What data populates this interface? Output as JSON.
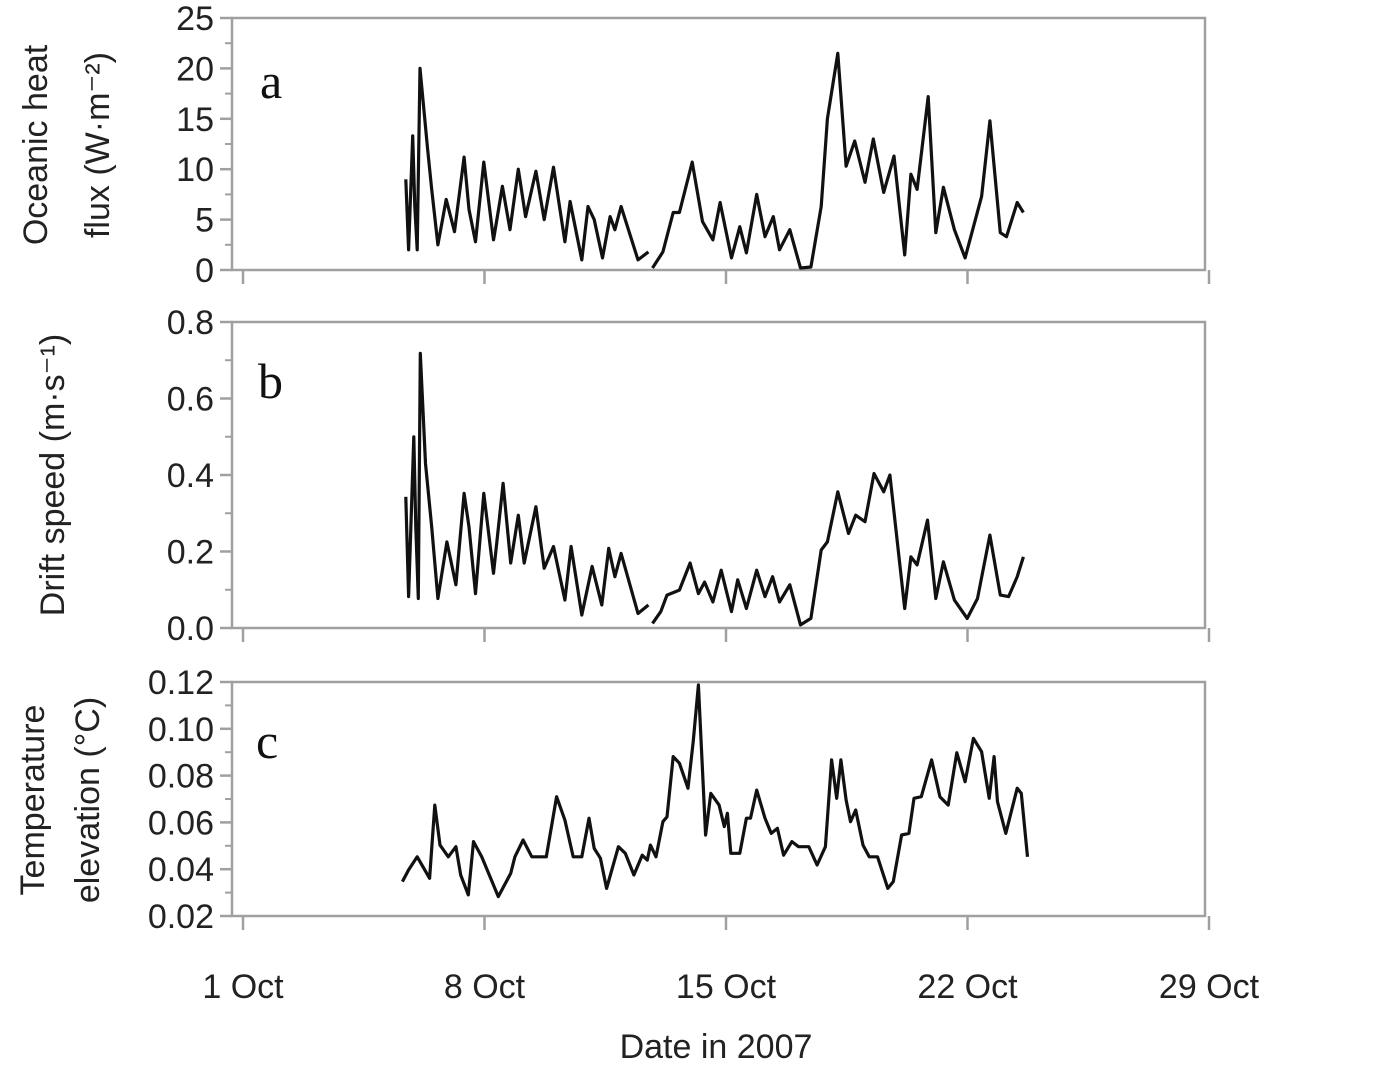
{
  "chart_data": {
    "type": "line",
    "xlabel": "Date in 2007",
    "x_unit": "days after 1 Oct 2007",
    "xlim": [
      0,
      28
    ],
    "x_ticks": [
      0,
      7,
      14,
      21,
      28
    ],
    "x_tick_labels": [
      "1 Oct",
      "8 Oct",
      "15 Oct",
      "22 Oct",
      "29 Oct"
    ],
    "panels": [
      {
        "label": "a",
        "ylabel_line1": "Oceanic heat",
        "ylabel_line2": "flux (W·m⁻²)",
        "ylim": [
          0,
          25
        ],
        "y_ticks": [
          0,
          5,
          10,
          15,
          20,
          25
        ],
        "y_tick_labels": [
          "0",
          "5",
          "10",
          "15",
          "20",
          "25"
        ],
        "points": [
          [
            4.72,
            9.0
          ],
          [
            4.8,
            2.0
          ],
          [
            4.92,
            13.3
          ],
          [
            4.98,
            6.3
          ],
          [
            5.05,
            2
          ],
          [
            5.13,
            20
          ],
          [
            5.35,
            12
          ],
          [
            5.47,
            8
          ],
          [
            5.65,
            2.5
          ],
          [
            5.89,
            7
          ],
          [
            6.13,
            3.8
          ],
          [
            6.41,
            11.2
          ],
          [
            6.55,
            6
          ],
          [
            6.74,
            2.8
          ],
          [
            6.98,
            10.7
          ],
          [
            7.26,
            3
          ],
          [
            7.52,
            8.3
          ],
          [
            7.74,
            4
          ],
          [
            7.98,
            10
          ],
          [
            8.19,
            5.3
          ],
          [
            8.49,
            9.8
          ],
          [
            8.73,
            5
          ],
          [
            9.0,
            10.2
          ],
          [
            9.33,
            2.8
          ],
          [
            9.48,
            6.8
          ],
          [
            9.82,
            1
          ],
          [
            10.0,
            6.3
          ],
          [
            10.18,
            5
          ],
          [
            10.42,
            1.2
          ],
          [
            10.64,
            5.3
          ],
          [
            10.78,
            4
          ],
          [
            10.96,
            6.3
          ],
          [
            11.45,
            1
          ],
          [
            11.75,
            1.8
          ],
          null,
          [
            11.87,
            0.2
          ],
          [
            12.17,
            1.8
          ],
          [
            12.47,
            5.7
          ],
          [
            12.65,
            5.7
          ],
          [
            13.02,
            10.7
          ],
          [
            13.32,
            4.8
          ],
          [
            13.62,
            3
          ],
          [
            13.83,
            6.7
          ],
          [
            14.16,
            1.2
          ],
          [
            14.4,
            4.3
          ],
          [
            14.59,
            1.7
          ],
          [
            14.89,
            7.5
          ],
          [
            15.13,
            3.3
          ],
          [
            15.37,
            5.3
          ],
          [
            15.55,
            2
          ],
          [
            15.85,
            4
          ],
          [
            16.16,
            0.2
          ],
          [
            16.46,
            0.3
          ],
          [
            16.76,
            6.3
          ],
          [
            16.94,
            15
          ],
          [
            17.24,
            21.5
          ],
          [
            17.48,
            10.3
          ],
          [
            17.73,
            12.8
          ],
          [
            18.03,
            8.7
          ],
          [
            18.27,
            13
          ],
          [
            18.57,
            7.7
          ],
          [
            18.87,
            11.3
          ],
          [
            19.18,
            1.5
          ],
          [
            19.36,
            9.5
          ],
          [
            19.54,
            8
          ],
          [
            19.86,
            17.2
          ],
          [
            20.08,
            3.7
          ],
          [
            20.3,
            8.2
          ],
          [
            20.62,
            4
          ],
          [
            20.93,
            1.2
          ],
          [
            21.41,
            7.3
          ],
          [
            21.65,
            14.8
          ],
          [
            21.95,
            3.7
          ],
          [
            22.13,
            3.3
          ],
          [
            22.44,
            6.7
          ],
          [
            22.62,
            5.7
          ]
        ]
      },
      {
        "label": "b",
        "ylabel_line1": "Drift  speed (m·s⁻¹)",
        "ylabel_line2": "",
        "ylim": [
          0,
          0.8
        ],
        "y_ticks": [
          0,
          0.2,
          0.4,
          0.6,
          0.8
        ],
        "y_tick_labels": [
          "0.0",
          "0.2",
          "0.4",
          "0.6",
          "0.8"
        ],
        "points": [
          [
            4.72,
            0.343
          ],
          [
            4.8,
            0.082
          ],
          [
            4.95,
            0.5
          ],
          [
            5.01,
            0.264
          ],
          [
            5.08,
            0.077
          ],
          [
            5.14,
            0.718
          ],
          [
            5.29,
            0.43
          ],
          [
            5.47,
            0.264
          ],
          [
            5.65,
            0.077
          ],
          [
            5.91,
            0.225
          ],
          [
            6.17,
            0.113
          ],
          [
            6.41,
            0.352
          ],
          [
            6.55,
            0.264
          ],
          [
            6.74,
            0.09
          ],
          [
            6.98,
            0.352
          ],
          [
            7.26,
            0.143
          ],
          [
            7.54,
            0.378
          ],
          [
            7.76,
            0.17
          ],
          [
            7.98,
            0.295
          ],
          [
            8.15,
            0.17
          ],
          [
            8.49,
            0.317
          ],
          [
            8.73,
            0.156
          ],
          [
            9.0,
            0.213
          ],
          [
            9.33,
            0.073
          ],
          [
            9.51,
            0.213
          ],
          [
            9.82,
            0.034
          ],
          [
            10.12,
            0.161
          ],
          [
            10.4,
            0.06
          ],
          [
            10.6,
            0.208
          ],
          [
            10.78,
            0.134
          ],
          [
            10.96,
            0.195
          ],
          [
            11.45,
            0.038
          ],
          [
            11.75,
            0.06
          ],
          null,
          [
            11.87,
            0.012
          ],
          [
            12.11,
            0.043
          ],
          [
            12.29,
            0.086
          ],
          [
            12.65,
            0.099
          ],
          [
            12.96,
            0.17
          ],
          [
            13.2,
            0.09
          ],
          [
            13.38,
            0.12
          ],
          [
            13.62,
            0.068
          ],
          [
            13.86,
            0.151
          ],
          [
            14.16,
            0.043
          ],
          [
            14.34,
            0.126
          ],
          [
            14.59,
            0.051
          ],
          [
            14.89,
            0.151
          ],
          [
            15.13,
            0.082
          ],
          [
            15.35,
            0.134
          ],
          [
            15.55,
            0.068
          ],
          [
            15.85,
            0.113
          ],
          [
            16.16,
            0.008
          ],
          [
            16.46,
            0.025
          ],
          [
            16.76,
            0.204
          ],
          [
            16.94,
            0.225
          ],
          [
            17.24,
            0.356
          ],
          [
            17.55,
            0.247
          ],
          [
            17.76,
            0.295
          ],
          [
            18.03,
            0.278
          ],
          [
            18.29,
            0.404
          ],
          [
            18.57,
            0.356
          ],
          [
            18.75,
            0.4
          ],
          [
            19.18,
            0.051
          ],
          [
            19.36,
            0.186
          ],
          [
            19.54,
            0.165
          ],
          [
            19.84,
            0.282
          ],
          [
            20.08,
            0.077
          ],
          [
            20.3,
            0.173
          ],
          [
            20.62,
            0.073
          ],
          [
            20.99,
            0.025
          ],
          [
            21.29,
            0.077
          ],
          [
            21.65,
            0.243
          ],
          [
            21.95,
            0.086
          ],
          [
            22.19,
            0.082
          ],
          [
            22.44,
            0.134
          ],
          [
            22.62,
            0.186
          ]
        ]
      },
      {
        "label": "c",
        "ylabel_line1": "Temperature",
        "ylabel_line2": "elevation (°C)",
        "ylim": [
          0.02,
          0.12
        ],
        "y_ticks": [
          0.02,
          0.04,
          0.06,
          0.08,
          0.1,
          0.12
        ],
        "y_tick_labels": [
          "0.02",
          "0.04",
          "0.06",
          "0.08",
          "0.10",
          "0.12"
        ],
        "points": [
          [
            4.62,
            0.0347
          ],
          [
            4.8,
            0.0397
          ],
          [
            5.05,
            0.0453
          ],
          [
            5.41,
            0.0361
          ],
          [
            5.56,
            0.0674
          ],
          [
            5.71,
            0.0503
          ],
          [
            5.95,
            0.0453
          ],
          [
            6.17,
            0.0496
          ],
          [
            6.31,
            0.0375
          ],
          [
            6.53,
            0.029
          ],
          [
            6.68,
            0.0518
          ],
          [
            6.92,
            0.0453
          ],
          [
            7.4,
            0.0283
          ],
          [
            7.76,
            0.0382
          ],
          [
            7.88,
            0.0453
          ],
          [
            8.12,
            0.0525
          ],
          [
            8.37,
            0.0453
          ],
          [
            8.79,
            0.0453
          ],
          [
            9.09,
            0.071
          ],
          [
            9.33,
            0.061
          ],
          [
            9.57,
            0.0453
          ],
          [
            9.82,
            0.0453
          ],
          [
            10.03,
            0.0618
          ],
          [
            10.18,
            0.0489
          ],
          [
            10.36,
            0.0447
          ],
          [
            10.54,
            0.0318
          ],
          [
            10.88,
            0.0496
          ],
          [
            11.08,
            0.0468
          ],
          [
            11.33,
            0.0375
          ],
          [
            11.57,
            0.046
          ],
          [
            11.72,
            0.0439
          ],
          [
            11.81,
            0.0503
          ],
          [
            11.97,
            0.0453
          ],
          [
            12.17,
            0.0603
          ],
          [
            12.29,
            0.0624
          ],
          [
            12.47,
            0.0881
          ],
          [
            12.65,
            0.0853
          ],
          [
            12.9,
            0.0746
          ],
          [
            13.05,
            0.0945
          ],
          [
            13.2,
            0.1187
          ],
          [
            13.41,
            0.0546
          ],
          [
            13.56,
            0.0724
          ],
          [
            13.8,
            0.0674
          ],
          [
            13.95,
            0.0582
          ],
          [
            14.04,
            0.0639
          ],
          [
            14.14,
            0.0468
          ],
          [
            14.4,
            0.0468
          ],
          [
            14.59,
            0.0618
          ],
          [
            14.71,
            0.0618
          ],
          [
            14.89,
            0.0738
          ],
          [
            15.13,
            0.0618
          ],
          [
            15.31,
            0.0553
          ],
          [
            15.49,
            0.0575
          ],
          [
            15.67,
            0.046
          ],
          [
            15.91,
            0.0518
          ],
          [
            16.1,
            0.0496
          ],
          [
            16.4,
            0.0496
          ],
          [
            16.64,
            0.0418
          ],
          [
            16.88,
            0.0496
          ],
          [
            17.06,
            0.0867
          ],
          [
            17.21,
            0.0703
          ],
          [
            17.33,
            0.0867
          ],
          [
            17.48,
            0.0696
          ],
          [
            17.61,
            0.0603
          ],
          [
            17.76,
            0.0653
          ],
          [
            17.97,
            0.0503
          ],
          [
            18.15,
            0.0453
          ],
          [
            18.39,
            0.0453
          ],
          [
            18.69,
            0.0318
          ],
          [
            18.85,
            0.0347
          ],
          [
            19.09,
            0.0546
          ],
          [
            19.3,
            0.0553
          ],
          [
            19.45,
            0.0703
          ],
          [
            19.66,
            0.071
          ],
          [
            19.96,
            0.0867
          ],
          [
            20.2,
            0.071
          ],
          [
            20.44,
            0.0674
          ],
          [
            20.69,
            0.0898
          ],
          [
            20.93,
            0.0774
          ],
          [
            21.17,
            0.0959
          ],
          [
            21.41,
            0.0902
          ],
          [
            21.63,
            0.0703
          ],
          [
            21.77,
            0.0881
          ],
          [
            21.87,
            0.0688
          ],
          [
            22.11,
            0.0553
          ],
          [
            22.44,
            0.0746
          ],
          [
            22.56,
            0.0724
          ],
          [
            22.74,
            0.0453
          ]
        ]
      }
    ],
    "grid": false,
    "colors": {
      "line": "#111111",
      "axis": "#a0a0a0",
      "text": "#222222"
    }
  }
}
